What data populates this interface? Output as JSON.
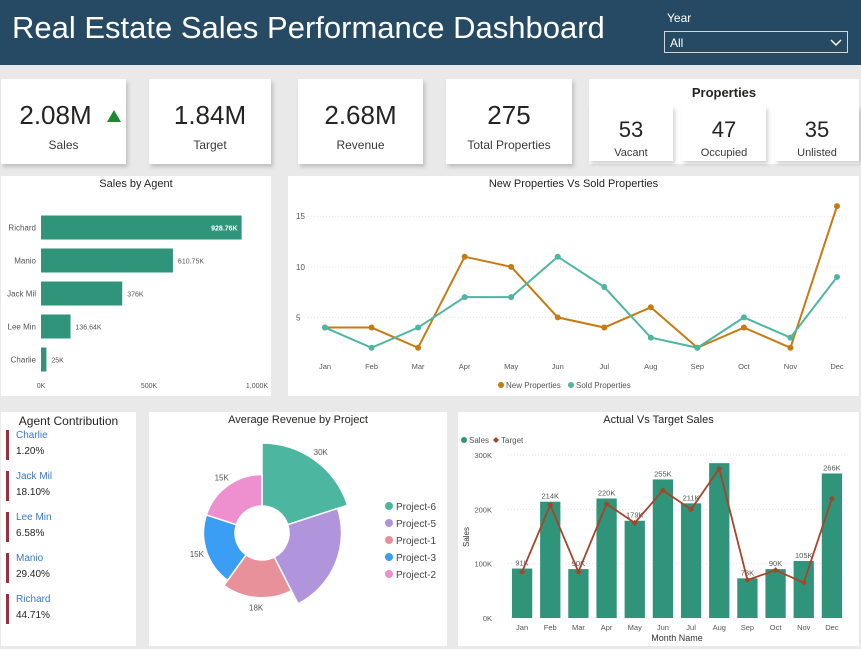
{
  "header": {
    "title": "Real Estate Sales Performance Dashboard",
    "year_label": "Year",
    "year_value": "All"
  },
  "kpis": {
    "sales": {
      "value": "2.08M",
      "label": "Sales"
    },
    "target": {
      "value": "1.84M",
      "label": "Target"
    },
    "revenue": {
      "value": "2.68M",
      "label": "Revenue"
    },
    "total_properties": {
      "value": "275",
      "label": "Total Properties"
    }
  },
  "properties": {
    "title": "Properties",
    "vacant": {
      "value": "53",
      "label": "Vacant"
    },
    "occupied": {
      "value": "47",
      "label": "Occupied"
    },
    "unlisted": {
      "value": "35",
      "label": "Unlisted"
    }
  },
  "agent_contribution": {
    "title": "Agent Contribution",
    "items": [
      {
        "name": "Charlie",
        "pct": "1.20%"
      },
      {
        "name": "Jack Mil",
        "pct": "18.10%"
      },
      {
        "name": "Lee Min",
        "pct": "6.58%"
      },
      {
        "name": "Manio",
        "pct": "29.40%"
      },
      {
        "name": "Richard",
        "pct": "44.71%"
      }
    ]
  },
  "colors": {
    "header": "#264a63",
    "teal": "#2f9479",
    "orange": "#c87a12",
    "sold": "#4db6a0",
    "target_line": "#a8432a",
    "up_arrow": "#1e8a33",
    "agent_bar": "#9b2f3e"
  },
  "chart_data": [
    {
      "type": "bar",
      "title": "Sales by Agent",
      "orientation": "horizontal",
      "categories": [
        "Richard",
        "Manio",
        "Jack Mil",
        "Lee Min",
        "Charlie"
      ],
      "values": [
        928.76,
        610.75,
        376,
        136.64,
        25
      ],
      "data_labels": [
        "928.76K",
        "610.75K",
        "376K",
        "136.64K",
        "25K"
      ],
      "xlim": [
        0,
        1000
      ],
      "x_ticks": [
        0,
        500,
        1000
      ],
      "x_tick_labels": [
        "0K",
        "500K",
        "1,000K"
      ]
    },
    {
      "type": "line",
      "title": "New Properties Vs Sold Properties",
      "categories": [
        "Jan",
        "Feb",
        "Mar",
        "Apr",
        "May",
        "Jun",
        "Jul",
        "Aug",
        "Sep",
        "Oct",
        "Nov",
        "Dec"
      ],
      "series": [
        {
          "name": "New Properties",
          "values": [
            4,
            4,
            2,
            11,
            10,
            5,
            4,
            6,
            2,
            4,
            2,
            16
          ]
        },
        {
          "name": "Sold Properties",
          "values": [
            4,
            2,
            4,
            7,
            7,
            11,
            8,
            3,
            2,
            5,
            3,
            9
          ]
        }
      ],
      "ylim": [
        0,
        17
      ],
      "y_ticks": [
        5,
        10,
        15
      ],
      "y_tick_labels": [
        "5",
        "10",
        "15"
      ],
      "legend": "bottom"
    },
    {
      "type": "pie",
      "title": "Average Revenue by Project",
      "style": "rose-donut",
      "labels": [
        "Project-6",
        "Project-5",
        "Project-1",
        "Project-3",
        "Project-2"
      ],
      "values": [
        30,
        25,
        18,
        15,
        15
      ],
      "data_labels": [
        "30K",
        "",
        "18K",
        "15K",
        "15K"
      ],
      "colors": [
        "#4db6a0",
        "#b094dc",
        "#e9919a",
        "#3a9ef5",
        "#ee8fd0"
      ],
      "legend": "right"
    },
    {
      "type": "bar",
      "title": "Actual Vs Target Sales",
      "xlabel": "Month Name",
      "ylabel": "Sales",
      "categories": [
        "Jan",
        "Feb",
        "Mar",
        "Apr",
        "May",
        "Jun",
        "Jul",
        "Aug",
        "Sep",
        "Oct",
        "Nov",
        "Dec"
      ],
      "series": [
        {
          "name": "Sales",
          "kind": "bar",
          "values": [
            91,
            214,
            90,
            220,
            179,
            255,
            211,
            285,
            73,
            90,
            105,
            266
          ]
        },
        {
          "name": "Target",
          "kind": "line",
          "values": [
            85,
            208,
            85,
            210,
            175,
            235,
            200,
            275,
            70,
            88,
            65,
            220
          ]
        }
      ],
      "data_labels": [
        "91K",
        "214K",
        "90K",
        "220K",
        "179K",
        "255K",
        "211K",
        "",
        "73K",
        "90K",
        "105K",
        "266K"
      ],
      "ylim": [
        0,
        300
      ],
      "y_ticks": [
        0,
        100,
        200,
        300
      ],
      "y_tick_labels": [
        "0K",
        "100K",
        "200K",
        "300K"
      ],
      "legend": "top-left"
    }
  ]
}
